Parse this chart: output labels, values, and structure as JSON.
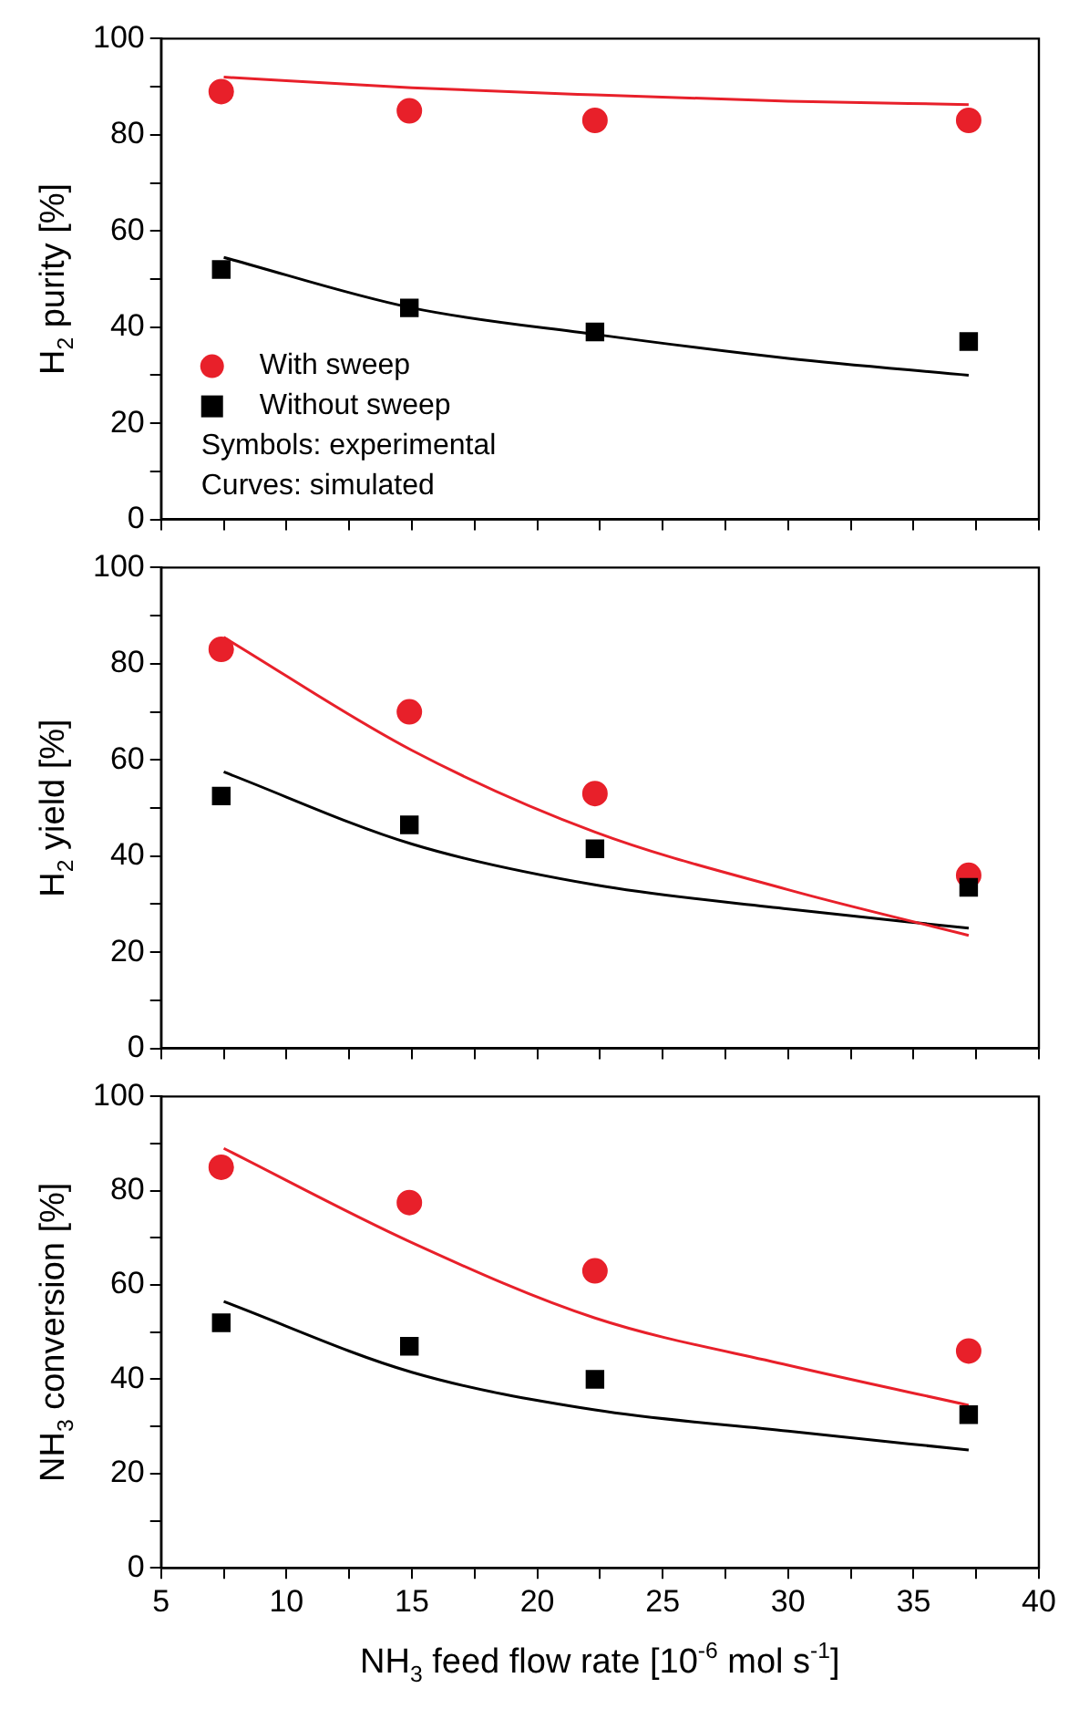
{
  "chart_data": [
    {
      "type": "scatter",
      "ylabel": "H$_{2}$ purity [%]",
      "xlim": [
        5,
        40
      ],
      "xticks": [
        5,
        {
          "value": 7.5,
          "label": null
        },
        10,
        {
          "value": 12.5,
          "label": null
        },
        15,
        {
          "value": 17.5,
          "label": null
        },
        20,
        {
          "value": 22.5,
          "label": null
        },
        25,
        {
          "value": 27.5,
          "label": null
        },
        30,
        {
          "value": 32.5,
          "label": null
        },
        35,
        {
          "value": 37.5,
          "label": null
        },
        40
      ],
      "ylim": [
        0,
        100
      ],
      "yticks": [
        0,
        {
          "value": 10,
          "label": null
        },
        20,
        {
          "value": 30,
          "label": null
        },
        40,
        {
          "value": 50,
          "label": null
        },
        60,
        {
          "value": 70,
          "label": null
        },
        80,
        {
          "value": 90,
          "label": null
        },
        100
      ],
      "tick_labels": "y",
      "grid": false,
      "legend": "bottom left",
      "annotations": [
        "Symbols: experimental",
        "Curves: simulated"
      ],
      "series": [
        {
          "name": "With sweep",
          "marker": "circle",
          "color": "#e8202a",
          "x": [
            7.4,
            14.9,
            22.3,
            37.2
          ],
          "values": [
            89,
            85,
            83,
            83
          ]
        },
        {
          "name": "Without sweep",
          "marker": "square",
          "color": "#000000",
          "x": [
            7.4,
            14.9,
            22.3,
            37.2
          ],
          "values": [
            52,
            44,
            39,
            37
          ]
        },
        {
          "type": "line",
          "marker": "none",
          "color": "#e8202a",
          "x": [
            7.5,
            15,
            22.3,
            30,
            37.2
          ],
          "values": [
            92,
            89.8,
            88.3,
            87,
            86.3
          ]
        },
        {
          "type": "line",
          "marker": "none",
          "color": "#000000",
          "x": [
            7.5,
            15,
            22.3,
            30,
            37.2
          ],
          "values": [
            54.5,
            44,
            38.5,
            33.5,
            30
          ]
        }
      ]
    },
    {
      "type": "scatter",
      "ylabel": "H$_{2}$ yield [%]",
      "xlim": [
        5,
        40
      ],
      "xticks": [
        5,
        {
          "value": 7.5,
          "label": null
        },
        10,
        {
          "value": 12.5,
          "label": null
        },
        15,
        {
          "value": 17.5,
          "label": null
        },
        20,
        {
          "value": 22.5,
          "label": null
        },
        25,
        {
          "value": 27.5,
          "label": null
        },
        30,
        {
          "value": 32.5,
          "label": null
        },
        35,
        {
          "value": 37.5,
          "label": null
        },
        40
      ],
      "ylim": [
        0,
        100
      ],
      "yticks": [
        0,
        {
          "value": 10,
          "label": null
        },
        20,
        {
          "value": 30,
          "label": null
        },
        40,
        {
          "value": 50,
          "label": null
        },
        60,
        {
          "value": 70,
          "label": null
        },
        80,
        {
          "value": 90,
          "label": null
        },
        100
      ],
      "tick_labels": "y",
      "grid": false,
      "series": [
        {
          "marker": "circle",
          "color": "#e8202a",
          "x": [
            7.4,
            14.9,
            22.3,
            37.2
          ],
          "values": [
            83,
            70,
            53,
            36
          ]
        },
        {
          "marker": "square",
          "color": "#000000",
          "x": [
            7.4,
            14.9,
            22.3,
            37.2
          ],
          "values": [
            52.5,
            46.5,
            41.5,
            33.5
          ]
        },
        {
          "type": "line",
          "marker": "none",
          "color": "#e8202a",
          "x": [
            7.5,
            15,
            22.3,
            30,
            37.2
          ],
          "values": [
            85.5,
            62,
            45,
            33,
            23.5
          ]
        },
        {
          "type": "line",
          "marker": "none",
          "color": "#000000",
          "x": [
            7.5,
            15,
            22.3,
            30,
            37.2
          ],
          "values": [
            57.5,
            42.5,
            34,
            29,
            25
          ]
        }
      ]
    },
    {
      "type": "scatter",
      "xlabel": "NH$_{3}$ feed flow rate [10$^{-6}$ mol s$^{-1}$]",
      "ylabel": "NH$_{3}$ conversion [%]",
      "xlim": [
        5,
        40
      ],
      "xticks": [
        5,
        {
          "value": 7.5,
          "label": null
        },
        10,
        {
          "value": 12.5,
          "label": null
        },
        15,
        {
          "value": 17.5,
          "label": null
        },
        20,
        {
          "value": 22.5,
          "label": null
        },
        25,
        {
          "value": 27.5,
          "label": null
        },
        30,
        {
          "value": 32.5,
          "label": null
        },
        35,
        {
          "value": 37.5,
          "label": null
        },
        40
      ],
      "ylim": [
        0,
        100
      ],
      "yticks": [
        0,
        {
          "value": 10,
          "label": null
        },
        20,
        {
          "value": 30,
          "label": null
        },
        40,
        {
          "value": 50,
          "label": null
        },
        60,
        {
          "value": 70,
          "label": null
        },
        80,
        {
          "value": 90,
          "label": null
        },
        100
      ],
      "grid": false,
      "series": [
        {
          "marker": "circle",
          "color": "#e8202a",
          "x": [
            7.4,
            14.9,
            22.3,
            37.2
          ],
          "values": [
            85,
            77.5,
            63,
            46
          ]
        },
        {
          "marker": "square",
          "color": "#000000",
          "x": [
            7.4,
            14.9,
            22.3,
            37.2
          ],
          "values": [
            52,
            47,
            40,
            32.5
          ]
        },
        {
          "type": "line",
          "marker": "none",
          "color": "#e8202a",
          "x": [
            7.5,
            15,
            22.3,
            30,
            37.2
          ],
          "values": [
            89,
            69,
            53,
            43,
            34.5
          ]
        },
        {
          "type": "line",
          "marker": "none",
          "color": "#000000",
          "x": [
            7.5,
            15,
            22.3,
            30,
            37.2
          ],
          "values": [
            56.5,
            41.5,
            33.5,
            29,
            25
          ]
        }
      ]
    }
  ]
}
